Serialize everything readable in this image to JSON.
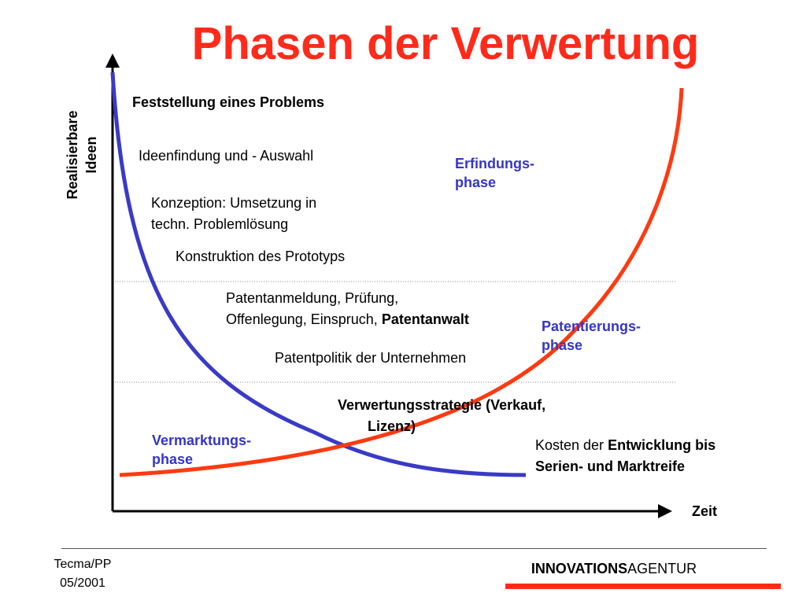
{
  "title": "Phasen der Verwertung",
  "axes": {
    "y_label_line1": "Realisierbare",
    "y_label_line2": "Ideen",
    "x_label": "Zeit"
  },
  "steps": {
    "s1": "Feststellung eines Problems",
    "s2": "Ideenfindung und - Auswahl",
    "s3_line1": "Konzeption: Umsetzung in",
    "s3_line2": "techn. Problemlösung",
    "s4": "Konstruktion des Prototyps",
    "s5_line1": "Patentanmeldung, Prüfung,",
    "s5_line2_normal": "Offenlegung, Einspruch, ",
    "s5_line2_bold": "Patentanwalt",
    "s6": "Patentpolitik der Unternehmen",
    "s7_line1": "Verwertungsstrategie (Verkauf,",
    "s7_line2": "Lizenz)",
    "cost_line1_normal": "Kosten der ",
    "cost_line1_bold": "Entwicklung bis",
    "cost_line2": "Serien- und   Marktreife"
  },
  "phases": {
    "erfindung_line1": "Erfindungs-",
    "erfindung_line2": "phase",
    "patent_line1": "Patentierungs-",
    "patent_line2": "phase",
    "vermarktung_line1": "Vermarktungs-",
    "vermarktung_line2": "phase"
  },
  "footer": {
    "left_line1": "Tecma/PP",
    "left_line2": "05/2001",
    "brand_bold": "INNOVATIONS",
    "brand_normal": "AGENTUR"
  },
  "colors": {
    "title": "#ff2a1a",
    "blue_curve": "#3a3ac8",
    "red_curve": "#ff3a10",
    "phase_text": "#3535c8"
  }
}
